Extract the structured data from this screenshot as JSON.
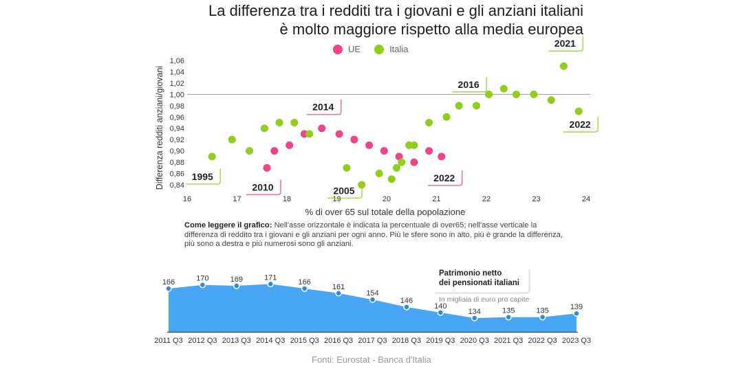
{
  "title_line1": "La differenza tra i redditi tra i giovani e gli anziani italiani",
  "title_line2": "è molto maggiore rispetto alla media europea",
  "colors": {
    "ue": "#f0438a",
    "italia": "#8fcf1c",
    "area": "#49a6f5",
    "area_dot": "#2b8be0"
  },
  "legend": {
    "ue": "UE",
    "italia": "Italia"
  },
  "how_to_read_title": "Come leggere il grafico:",
  "how_to_read_text": "Nell'asse orizzontale è indicata la percentuale di over65; nell'asse verticale la differenza di reddito tra i giovani e gli anziani per ogni anno. Più le sfere sono in alto, più è grande la differenza, più sono a destra e più numerosi sono gli anziani.",
  "wealth_title_line1": "Patrimonio netto",
  "wealth_title_line2": "dei pensionati italiani",
  "wealth_subtitle": "In migliaia di euro pro capite",
  "source": "Fonti: Eurostat - Banca d'Italia",
  "chart_data": [
    {
      "type": "scatter",
      "title": "",
      "xlabel": "% di over 65 sul totale della popolazione",
      "ylabel": "Differenza redditi anziani/giovani",
      "xlim": [
        16,
        24
      ],
      "ylim": [
        0.84,
        1.06
      ],
      "xticks": [
        "16",
        "17",
        "18",
        "19",
        "20",
        "21",
        "22",
        "23",
        "24"
      ],
      "yticks": [
        "0,84",
        "0,86",
        "0,88",
        "0,90",
        "0,92",
        "0,94",
        "0,96",
        "0,98",
        "1,00",
        "1,02",
        "1,04",
        "1,06"
      ],
      "reference_line_y": 1.0,
      "series": [
        {
          "name": "UE",
          "color": "#f0438a",
          "points": [
            [
              17.6,
              0.87
            ],
            [
              17.75,
              0.9
            ],
            [
              18.05,
              0.91
            ],
            [
              18.35,
              0.93
            ],
            [
              18.7,
              0.94
            ],
            [
              19.05,
              0.93
            ],
            [
              19.35,
              0.92
            ],
            [
              19.65,
              0.91
            ],
            [
              19.95,
              0.9
            ],
            [
              20.25,
              0.89
            ],
            [
              20.55,
              0.88
            ],
            [
              20.85,
              0.9
            ],
            [
              21.1,
              0.89
            ]
          ]
        },
        {
          "name": "Italia",
          "color": "#8fcf1c",
          "points": [
            [
              16.5,
              0.89
            ],
            [
              16.9,
              0.92
            ],
            [
              17.25,
              0.9
            ],
            [
              17.55,
              0.94
            ],
            [
              17.85,
              0.95
            ],
            [
              18.15,
              0.95
            ],
            [
              18.45,
              0.93
            ],
            [
              19.2,
              0.87
            ],
            [
              19.5,
              0.84
            ],
            [
              19.85,
              0.86
            ],
            [
              20.1,
              0.85
            ],
            [
              20.2,
              0.87
            ],
            [
              20.3,
              0.88
            ],
            [
              20.45,
              0.91
            ],
            [
              20.55,
              0.91
            ],
            [
              20.85,
              0.95
            ],
            [
              21.2,
              0.96
            ],
            [
              21.45,
              0.98
            ],
            [
              21.8,
              0.98
            ],
            [
              22.05,
              1.0
            ],
            [
              22.35,
              1.01
            ],
            [
              22.6,
              1.0
            ],
            [
              22.95,
              1.0
            ],
            [
              23.3,
              0.99
            ],
            [
              23.55,
              1.05
            ],
            [
              23.85,
              0.97
            ]
          ]
        }
      ],
      "annotations": [
        {
          "text": "1995",
          "x": 16.5,
          "y": 0.89
        },
        {
          "text": "2010",
          "x": 17.6,
          "y": 0.87
        },
        {
          "text": "2014",
          "x": 18.7,
          "y": 0.94
        },
        {
          "text": "2005",
          "x": 19.2,
          "y": 0.87
        },
        {
          "text": "2022",
          "x": 21.1,
          "y": 0.89
        },
        {
          "text": "2016",
          "x": 21.45,
          "y": 0.98
        },
        {
          "text": "2021",
          "x": 23.55,
          "y": 1.05
        },
        {
          "text": "2022",
          "x": 23.85,
          "y": 0.97
        }
      ]
    },
    {
      "type": "area",
      "title": "Patrimonio netto dei pensionati italiani",
      "subtitle": "In migliaia di euro pro capite",
      "categories": [
        "2011 Q3",
        "2012 Q3",
        "2013 Q3",
        "2014 Q3",
        "2015 Q3",
        "2016 Q3",
        "2017 Q3",
        "2018 Q3",
        "2019 Q3",
        "2020 Q3",
        "2021 Q3",
        "2022 Q3",
        "2023 Q3"
      ],
      "values": [
        166,
        170,
        169,
        171,
        166,
        161,
        154,
        146,
        140,
        134,
        135,
        135,
        139
      ],
      "ylim": [
        125,
        175
      ]
    }
  ]
}
